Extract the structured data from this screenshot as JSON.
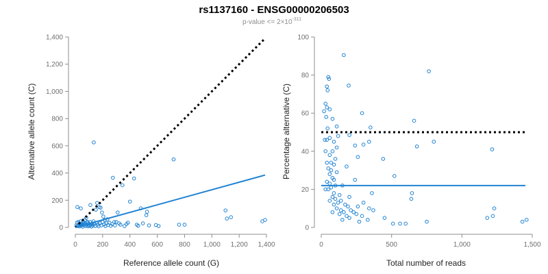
{
  "figure": {
    "title": "rs1137160 - ENSG00000206503",
    "subtitle": "p-value <= 2×10",
    "subtitle_exponent": "-311"
  },
  "colors": {
    "points": "#1f82d2",
    "fit": "#1f82d2",
    "reference": "#000000",
    "axis": "#8c8c8c"
  },
  "chart_data": [
    {
      "type": "scatter",
      "xlabel": "Reference allele count (G)",
      "ylabel": "Alternative allele count (C)",
      "xlim": [
        0,
        1400
      ],
      "ylim": [
        0,
        1400
      ],
      "x_ticks": [
        0,
        200,
        400,
        600,
        800,
        1000,
        1200,
        1400
      ],
      "y_ticks": [
        0,
        200,
        400,
        600,
        800,
        1000,
        1200,
        1400
      ],
      "x_tick_labels": [
        "0",
        "200",
        "400",
        "600",
        "800",
        "1,000",
        "1,200",
        "1,400"
      ],
      "y_tick_labels": [
        "0",
        "200",
        "400",
        "600",
        "800",
        "1,000",
        "1,200",
        "1,400"
      ],
      "grid": false,
      "reference_line": {
        "style": "dotted",
        "x": [
          0,
          1390
        ],
        "y": [
          0,
          1390
        ]
      },
      "fit_line": {
        "style": "solid",
        "x": [
          0,
          1390
        ],
        "y": [
          0,
          385
        ]
      },
      "points": [
        [
          15,
          150
        ],
        [
          40,
          140
        ],
        [
          60,
          30
        ],
        [
          70,
          55
        ],
        [
          80,
          70
        ],
        [
          90,
          40
        ],
        [
          100,
          20
        ],
        [
          110,
          165
        ],
        [
          135,
          625
        ],
        [
          150,
          130
        ],
        [
          160,
          180
        ],
        [
          175,
          150
        ],
        [
          185,
          145
        ],
        [
          195,
          110
        ],
        [
          205,
          80
        ],
        [
          215,
          55
        ],
        [
          235,
          60
        ],
        [
          275,
          365
        ],
        [
          300,
          40
        ],
        [
          310,
          110
        ],
        [
          345,
          310
        ],
        [
          400,
          190
        ],
        [
          430,
          360
        ],
        [
          480,
          140
        ],
        [
          520,
          90
        ],
        [
          525,
          115
        ],
        [
          720,
          500
        ],
        [
          760,
          20
        ],
        [
          800,
          20
        ],
        [
          1100,
          125
        ],
        [
          1110,
          65
        ],
        [
          1140,
          75
        ],
        [
          1370,
          45
        ],
        [
          1390,
          55
        ],
        [
          8,
          15
        ],
        [
          12,
          35
        ],
        [
          18,
          10
        ],
        [
          22,
          40
        ],
        [
          26,
          20
        ],
        [
          30,
          8
        ],
        [
          34,
          25
        ],
        [
          38,
          45
        ],
        [
          42,
          12
        ],
        [
          46,
          30
        ],
        [
          50,
          18
        ],
        [
          54,
          5
        ],
        [
          58,
          42
        ],
        [
          62,
          22
        ],
        [
          66,
          15
        ],
        [
          72,
          30
        ],
        [
          76,
          10
        ],
        [
          84,
          20
        ],
        [
          88,
          35
        ],
        [
          94,
          8
        ],
        [
          98,
          28
        ],
        [
          104,
          12
        ],
        [
          108,
          40
        ],
        [
          114,
          20
        ],
        [
          118,
          6
        ],
        [
          124,
          30
        ],
        [
          128,
          15
        ],
        [
          132,
          45
        ],
        [
          140,
          25
        ],
        [
          145,
          10
        ],
        [
          155,
          35
        ],
        [
          165,
          20
        ],
        [
          170,
          8
        ],
        [
          180,
          30
        ],
        [
          190,
          15
        ],
        [
          200,
          40
        ],
        [
          210,
          22
        ],
        [
          220,
          10
        ],
        [
          228,
          30
        ],
        [
          240,
          18
        ],
        [
          250,
          35
        ],
        [
          260,
          12
        ],
        [
          270,
          25
        ],
        [
          285,
          40
        ],
        [
          290,
          15
        ],
        [
          320,
          30
        ],
        [
          330,
          20
        ],
        [
          360,
          10
        ],
        [
          375,
          25
        ],
        [
          385,
          35
        ],
        [
          450,
          20
        ],
        [
          460,
          12
        ],
        [
          495,
          30
        ],
        [
          540,
          15
        ],
        [
          590,
          18
        ],
        [
          610,
          10
        ]
      ]
    },
    {
      "type": "scatter",
      "xlabel": "Total number of reads",
      "ylabel": "Percentage alternative (C)",
      "xlim": [
        0,
        1500
      ],
      "ylim": [
        0,
        100
      ],
      "x_ticks": [
        0,
        500,
        1000,
        1500
      ],
      "y_ticks": [
        0,
        20,
        40,
        60,
        80,
        100
      ],
      "x_tick_labels": [
        "0",
        "500",
        "1,000",
        "1,500"
      ],
      "y_tick_labels": [
        "0",
        "20",
        "40",
        "60",
        "80",
        "100"
      ],
      "grid": false,
      "reference_line": {
        "style": "dotted",
        "y": 50
      },
      "fit_line": {
        "style": "solid",
        "y": 22
      },
      "points": [
        [
          160,
          90.5
        ],
        [
          765,
          82
        ],
        [
          50,
          79
        ],
        [
          55,
          78
        ],
        [
          40,
          74
        ],
        [
          45,
          72
        ],
        [
          195,
          74.5
        ],
        [
          30,
          65
        ],
        [
          40,
          63
        ],
        [
          60,
          62
        ],
        [
          20,
          61
        ],
        [
          35,
          58
        ],
        [
          80,
          57
        ],
        [
          290,
          60
        ],
        [
          660,
          56
        ],
        [
          110,
          53
        ],
        [
          350,
          52.5
        ],
        [
          45,
          52
        ],
        [
          200,
          48.5
        ],
        [
          120,
          48
        ],
        [
          60,
          47
        ],
        [
          25,
          46
        ],
        [
          40,
          46
        ],
        [
          90,
          45
        ],
        [
          340,
          45
        ],
        [
          300,
          43.5
        ],
        [
          240,
          43
        ],
        [
          680,
          42.5
        ],
        [
          110,
          42
        ],
        [
          800,
          45
        ],
        [
          1215,
          41
        ],
        [
          80,
          40
        ],
        [
          30,
          40
        ],
        [
          60,
          38
        ],
        [
          100,
          36
        ],
        [
          260,
          37
        ],
        [
          440,
          36
        ],
        [
          40,
          34
        ],
        [
          70,
          34
        ],
        [
          90,
          33
        ],
        [
          50,
          31
        ],
        [
          180,
          32
        ],
        [
          70,
          30
        ],
        [
          110,
          29
        ],
        [
          60,
          28
        ],
        [
          520,
          27
        ],
        [
          80,
          26
        ],
        [
          90,
          25
        ],
        [
          40,
          24
        ],
        [
          240,
          25
        ],
        [
          60,
          23
        ],
        [
          100,
          22
        ],
        [
          150,
          22
        ],
        [
          70,
          21
        ],
        [
          50,
          20
        ],
        [
          30,
          20
        ],
        [
          90,
          18
        ],
        [
          360,
          18
        ],
        [
          645,
          18
        ],
        [
          130,
          17
        ],
        [
          80,
          16
        ],
        [
          200,
          16
        ],
        [
          100,
          15
        ],
        [
          140,
          14
        ],
        [
          640,
          15
        ],
        [
          60,
          14
        ],
        [
          120,
          13
        ],
        [
          300,
          13
        ],
        [
          170,
          12
        ],
        [
          90,
          12
        ],
        [
          260,
          11
        ],
        [
          190,
          11
        ],
        [
          110,
          10
        ],
        [
          140,
          9
        ],
        [
          340,
          10
        ],
        [
          210,
          9
        ],
        [
          160,
          8
        ],
        [
          80,
          8
        ],
        [
          370,
          9
        ],
        [
          230,
          8
        ],
        [
          130,
          7
        ],
        [
          250,
          7
        ],
        [
          180,
          6
        ],
        [
          290,
          6
        ],
        [
          200,
          5
        ],
        [
          450,
          5
        ],
        [
          1230,
          10
        ],
        [
          1180,
          5
        ],
        [
          1220,
          6
        ],
        [
          150,
          4
        ],
        [
          330,
          4
        ],
        [
          270,
          3
        ],
        [
          600,
          2
        ],
        [
          750,
          3
        ],
        [
          1430,
          3
        ],
        [
          1460,
          4
        ],
        [
          510,
          2
        ],
        [
          560,
          2
        ]
      ]
    }
  ]
}
